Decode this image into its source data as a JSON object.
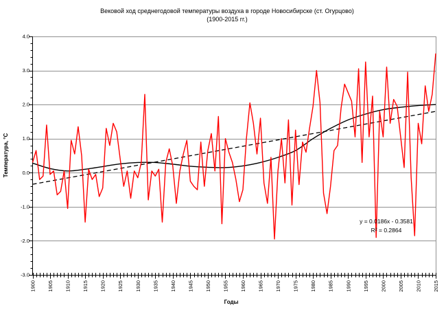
{
  "title": {
    "line1": "Вековой ход среднегодовой температуры воздуха в городе Новосибирске (ст. Огурцово)",
    "line2": "(1900-2015 гг.)"
  },
  "y_axis": {
    "label": "Температура, °С",
    "tick_labels": [
      "4.0",
      "3.0",
      "2.0",
      "1.0",
      "0.0",
      "-1.0",
      "-2.0",
      "-3.0"
    ],
    "max": 4.0,
    "min": -3.0,
    "major_step": 1.0,
    "minor_step": 0.2
  },
  "x_axis": {
    "label": "Годы",
    "tick_years": [
      1900,
      1905,
      1910,
      1915,
      1920,
      1925,
      1930,
      1935,
      1940,
      1945,
      1950,
      1955,
      1960,
      1965,
      1970,
      1975,
      1980,
      1985,
      1990,
      1995,
      2000,
      2005,
      2010,
      2015
    ],
    "minor_step": 1
  },
  "annotation": {
    "equation": "y = 0.0186x - 0.3581",
    "r_squared": "R² = 0.2864"
  },
  "colors": {
    "series": "#FF0000",
    "smooth": "#000000",
    "trend": "#000000",
    "grid": "#909090",
    "axis": "#000000"
  },
  "chart_data": {
    "type": "line",
    "title": "Вековой ход среднегодовой температуры воздуха в городе Новосибирске (ст. Огурцово) (1900-2015 гг.)",
    "xlabel": "Годы",
    "ylabel": "Температура, °С",
    "x_range": [
      1900,
      2015
    ],
    "ylim": [
      -3.0,
      4.0
    ],
    "grid": "horizontal-only",
    "legend": "none",
    "series": [
      {
        "name": "annual-mean-temperature",
        "style": "solid",
        "color": "#FF0000",
        "x_start": 1900,
        "x_step": 1,
        "values": [
          0.3,
          0.65,
          -0.2,
          -0.1,
          1.4,
          -0.05,
          0.05,
          -0.65,
          -0.55,
          0.05,
          -1.05,
          0.95,
          0.55,
          1.35,
          0.5,
          -1.45,
          0.1,
          -0.2,
          -0.05,
          -0.7,
          -0.45,
          1.3,
          0.8,
          1.45,
          1.2,
          0.4,
          -0.4,
          0.05,
          -0.75,
          0.05,
          -0.15,
          0.3,
          2.3,
          -0.8,
          0.05,
          -0.1,
          0.1,
          -1.45,
          0.3,
          0.7,
          0.2,
          -0.9,
          0.05,
          0.55,
          0.95,
          -0.25,
          -0.4,
          -0.5,
          0.9,
          -0.4,
          0.65,
          1.15,
          0.05,
          1.65,
          -1.5,
          1.0,
          0.6,
          0.3,
          -0.2,
          -0.85,
          -0.5,
          1.0,
          2.05,
          1.45,
          0.55,
          1.6,
          -0.3,
          -0.9,
          0.45,
          -1.95,
          0.05,
          1.0,
          -0.3,
          1.55,
          -0.95,
          1.25,
          -0.35,
          0.9,
          0.6,
          1.3,
          1.95,
          3.0,
          2.05,
          -0.6,
          -1.2,
          -0.4,
          0.65,
          0.8,
          1.9,
          2.6,
          2.35,
          2.1,
          1.05,
          3.05,
          0.3,
          3.25,
          1.05,
          2.25,
          -1.9,
          1.8,
          1.05,
          3.1,
          1.45,
          2.15,
          1.95,
          1.05,
          0.15,
          2.95,
          -0.15,
          -1.85,
          1.45,
          0.85,
          2.55,
          1.8,
          2.3,
          3.5
        ]
      },
      {
        "name": "smoothed-trend-curve",
        "style": "solid-smooth",
        "color": "#000000",
        "anchors": [
          [
            1900,
            0.28
          ],
          [
            1905,
            0.12
          ],
          [
            1910,
            0.05
          ],
          [
            1915,
            0.1
          ],
          [
            1920,
            0.18
          ],
          [
            1925,
            0.26
          ],
          [
            1930,
            0.3
          ],
          [
            1935,
            0.3
          ],
          [
            1940,
            0.25
          ],
          [
            1945,
            0.19
          ],
          [
            1950,
            0.16
          ],
          [
            1955,
            0.15
          ],
          [
            1960,
            0.2
          ],
          [
            1965,
            0.3
          ],
          [
            1970,
            0.45
          ],
          [
            1975,
            0.65
          ],
          [
            1980,
            1.0
          ],
          [
            1985,
            1.3
          ],
          [
            1990,
            1.55
          ],
          [
            1995,
            1.72
          ],
          [
            2000,
            1.85
          ],
          [
            2005,
            1.92
          ],
          [
            2010,
            1.97
          ],
          [
            2015,
            2.0
          ]
        ]
      },
      {
        "name": "linear-trend",
        "style": "dashed",
        "color": "#000000",
        "slope": 0.0186,
        "intercept": -0.3581,
        "x_is": "year-1899"
      }
    ]
  }
}
